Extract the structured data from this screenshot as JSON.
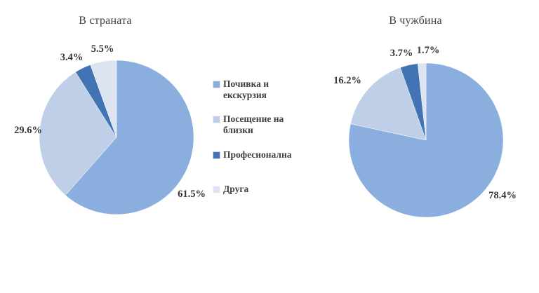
{
  "palette": [
    "#8AAEDD",
    "#BECFE7",
    "#4273B4",
    "#DCE4F1"
  ],
  "legend": {
    "items": [
      {
        "label": "Почивка и екскурзия"
      },
      {
        "label": "Посещение на близки"
      },
      {
        "label": "Професионална"
      },
      {
        "label": "Друга"
      }
    ]
  },
  "chart_data": [
    {
      "type": "pie",
      "title": "В страната",
      "categories": [
        "Почивка и екскурзия",
        "Посещение на близки",
        "Професионална",
        "Друга"
      ],
      "values": [
        61.5,
        29.6,
        3.4,
        5.5
      ],
      "labels": [
        "61.5%",
        "29.6%",
        "3.4%",
        "5.5%"
      ],
      "colors": [
        "#8AAEDD",
        "#BECFE7",
        "#4273B4",
        "#DCE4F1"
      ],
      "start_angle_deg": 0,
      "direction": "clockwise",
      "legend_position": "right"
    },
    {
      "type": "pie",
      "title": "В чужбина",
      "categories": [
        "Почивка и екскурзия",
        "Посещение на близки",
        "Професионална",
        "Друга"
      ],
      "values": [
        78.4,
        16.2,
        3.7,
        1.7
      ],
      "labels": [
        "78.4%",
        "16.2%",
        "3.7%",
        "1.7%"
      ],
      "colors": [
        "#8AAEDD",
        "#BECFE7",
        "#4273B4",
        "#DCE4F1"
      ],
      "start_angle_deg": 0,
      "direction": "clockwise",
      "legend_position": "shared-left-chart"
    }
  ]
}
